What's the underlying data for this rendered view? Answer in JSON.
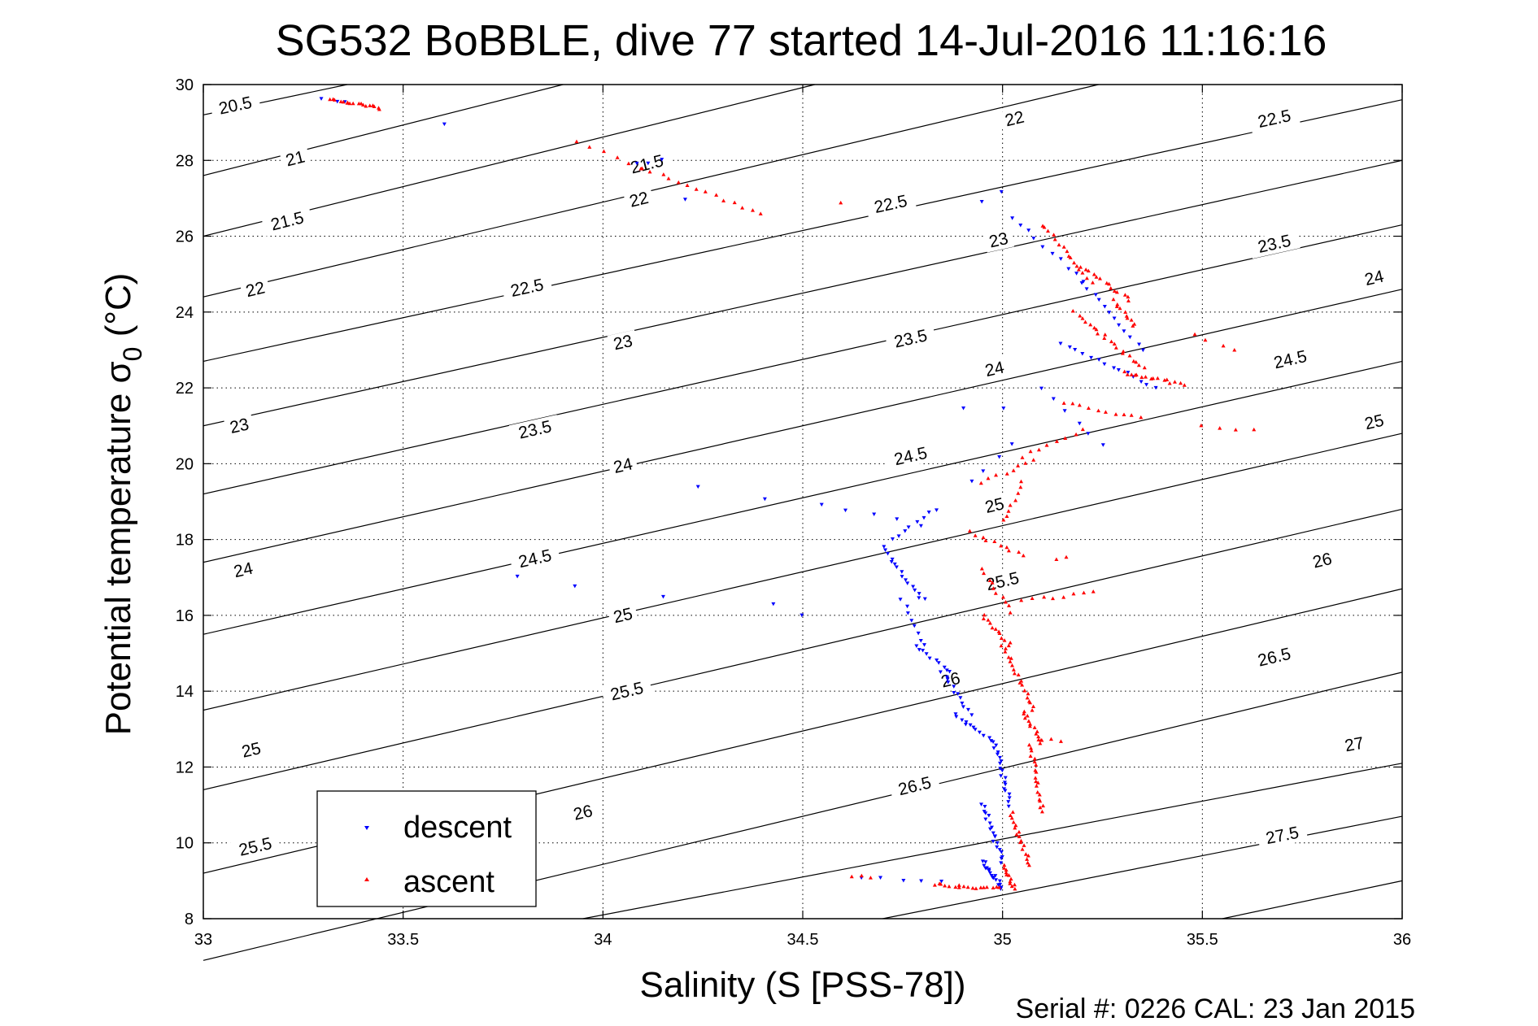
{
  "figure": {
    "title": "SG532 BoBBLE, dive 77 started 14-Jul-2016 11:16:16",
    "footer": "Serial #: 0226  CAL: 23 Jan 2015"
  },
  "chart_data": {
    "type": "scatter",
    "title": "SG532 BoBBLE, dive 77 started 14-Jul-2016 11:16:16",
    "xlabel": "Salinity (S [PSS-78])",
    "ylabel_main": "Potential temperature σ",
    "ylabel_sub": "0",
    "ylabel_unit": " (°C)",
    "xlim": [
      33,
      36
    ],
    "ylim": [
      8,
      30
    ],
    "grid": true,
    "xticks": [
      33,
      33.5,
      34,
      34.5,
      35,
      35.5,
      36
    ],
    "xtick_labels": [
      "33",
      "33.5",
      "34",
      "34.5",
      "35",
      "35.5",
      "36"
    ],
    "yticks": [
      8,
      10,
      12,
      14,
      16,
      18,
      20,
      22,
      24,
      26,
      28,
      30
    ],
    "ytick_labels": [
      "8",
      "10",
      "12",
      "14",
      "16",
      "18",
      "20",
      "22",
      "24",
      "26",
      "28",
      "30"
    ],
    "legend": {
      "position": "bottom-left",
      "entries": [
        "descent",
        "ascent"
      ]
    },
    "colors": {
      "descent": "#0000ff",
      "ascent": "#ff0000",
      "contour": "#000000"
    },
    "contours": [
      {
        "label": "20.5",
        "line": [
          [
            33,
            29.2
          ],
          [
            33.36,
            30
          ]
        ],
        "label_pos": [
          33.08,
          29.45
        ]
      },
      {
        "label": "21",
        "line": [
          [
            33,
            27.6
          ],
          [
            33.9,
            30
          ]
        ],
        "label_pos": [
          33.23,
          28.05
        ]
      },
      {
        "label": "21.5",
        "line": [
          [
            33,
            26.0
          ],
          [
            34.53,
            30
          ]
        ],
        "label_pos": [
          33.21,
          26.4
        ],
        "label2": "21.5",
        "label2_pos": [
          34.11,
          27.9
        ]
      },
      {
        "label": "22",
        "line": [
          [
            33,
            24.4
          ],
          [
            35.24,
            30
          ]
        ],
        "label_pos": [
          33.13,
          24.6
        ],
        "label2": "22",
        "label2_pos": [
          34.09,
          26.97
        ],
        "label3": "22",
        "label3_pos": [
          35.03,
          29.1
        ]
      },
      {
        "label": "22.5",
        "line": [
          [
            33,
            22.7
          ],
          [
            36,
            29.6
          ]
        ],
        "label_pos": [
          33.81,
          24.64
        ],
        "label2": "22.5",
        "label2_pos": [
          34.72,
          26.85
        ],
        "label3": "22.5",
        "label3_pos": [
          35.68,
          29.1
        ]
      },
      {
        "label": "23",
        "line": [
          [
            33,
            21.0
          ],
          [
            36,
            28.0
          ]
        ],
        "label_pos": [
          33.09,
          21.0
        ],
        "label2": "23",
        "label2_pos": [
          34.05,
          23.2
        ],
        "label3": "23",
        "label3_pos": [
          34.99,
          25.9
        ]
      },
      {
        "label": "23.5",
        "line": [
          [
            33,
            19.2
          ],
          [
            36,
            26.3
          ]
        ],
        "label_pos": [
          33.83,
          20.9
        ],
        "label2": "23.5",
        "label2_pos": [
          34.77,
          23.3
        ],
        "label3": "23.5",
        "label3_pos": [
          35.68,
          25.8
        ]
      },
      {
        "label": "24",
        "line": [
          [
            33,
            17.4
          ],
          [
            36,
            24.6
          ]
        ],
        "label_pos": [
          33.1,
          17.2
        ],
        "label2": "24",
        "label2_pos": [
          34.05,
          19.95
        ],
        "label3": "24",
        "label3_pos": [
          34.98,
          22.5
        ],
        "label4": "24",
        "label4_pos": [
          35.93,
          24.9
        ]
      },
      {
        "label": "24.5",
        "line": [
          [
            33,
            15.5
          ],
          [
            36,
            22.7
          ]
        ],
        "label_pos": [
          33.83,
          17.5
        ],
        "label2": "24.5",
        "label2_pos": [
          34.77,
          20.2
        ],
        "label3": "24.5",
        "label3_pos": [
          35.72,
          22.75
        ]
      },
      {
        "label": "25",
        "line": [
          [
            33,
            13.5
          ],
          [
            36,
            20.8
          ]
        ],
        "label_pos": [
          33.12,
          12.45
        ],
        "label2": "25",
        "label2_pos": [
          34.05,
          16.0
        ],
        "label3": "25",
        "label3_pos": [
          34.98,
          18.9
        ],
        "label4": "25",
        "label4_pos": [
          35.93,
          21.1
        ]
      },
      {
        "label": "25.5",
        "line": [
          [
            33,
            11.4
          ],
          [
            36,
            18.8
          ]
        ],
        "label_pos": [
          33.13,
          9.9
        ],
        "label2": "25.5",
        "label2_pos": [
          34.06,
          14.0
        ],
        "label3": "25.5",
        "label3_pos": [
          35.0,
          16.9
        ]
      },
      {
        "label": "26",
        "line": [
          [
            33,
            9.2
          ],
          [
            36,
            16.7
          ]
        ],
        "label_pos": [
          33.95,
          10.8
        ],
        "label2": "26",
        "label2_pos": [
          34.87,
          14.3
        ],
        "label3": "26",
        "label3_pos": [
          35.8,
          17.45
        ]
      },
      {
        "label": "26.5",
        "line": [
          [
            33,
            6.9
          ],
          [
            36,
            14.5
          ]
        ],
        "label_pos": [
          34.78,
          11.5
        ],
        "label2": "26.5",
        "label2_pos": [
          35.68,
          14.9
        ]
      },
      {
        "label": "27",
        "line": [
          [
            33.95,
            8
          ],
          [
            36,
            12.1
          ]
        ],
        "label_pos": [
          35.88,
          12.6
        ]
      },
      {
        "label": "27.5",
        "line": [
          [
            34.7,
            8
          ],
          [
            36,
            10.7
          ]
        ],
        "label_pos": [
          35.7,
          10.2
        ]
      },
      {
        "label": "",
        "line": [
          [
            35.55,
            8
          ],
          [
            36,
            9.0
          ]
        ]
      }
    ],
    "series": [
      {
        "name": "descent",
        "marker": "triangle-down",
        "segments": [
          [
            33.3,
            29.6,
            33.36,
            29.58,
            3
          ],
          [
            33.6,
            28.95,
            33.6,
            28.95,
            1
          ],
          [
            34.08,
            27.9,
            34.15,
            28.0,
            3
          ],
          [
            34.2,
            27.0,
            34.2,
            27.0,
            1
          ],
          [
            34.95,
            26.95,
            35.0,
            27.2,
            2
          ],
          [
            35.02,
            26.5,
            35.2,
            24.8,
            10
          ],
          [
            35.2,
            24.8,
            35.35,
            23.0,
            12
          ],
          [
            35.15,
            23.2,
            35.38,
            22.0,
            14
          ],
          [
            35.1,
            22.0,
            35.25,
            20.5,
            6
          ],
          [
            34.9,
            21.5,
            35.0,
            21.5,
            2
          ],
          [
            35.02,
            20.5,
            34.92,
            19.5,
            4
          ],
          [
            34.24,
            19.4,
            34.41,
            19.1,
            2
          ],
          [
            34.55,
            18.9,
            34.8,
            18.4,
            5
          ],
          [
            34.72,
            18.0,
            34.83,
            18.8,
            8
          ],
          [
            34.7,
            17.8,
            34.8,
            16.4,
            16
          ],
          [
            34.75,
            16.4,
            34.8,
            15.2,
            8
          ],
          [
            34.78,
            15.2,
            34.87,
            14.5,
            10
          ],
          [
            34.85,
            14.5,
            34.92,
            13.4,
            12
          ],
          [
            34.88,
            13.4,
            34.97,
            12.7,
            12
          ],
          [
            34.98,
            12.7,
            35.02,
            11.0,
            20
          ],
          [
            34.95,
            11.0,
            35.0,
            9.5,
            20
          ],
          [
            34.95,
            9.5,
            35.0,
            8.8,
            18
          ],
          [
            33.78,
            17.0,
            33.93,
            16.8,
            2
          ],
          [
            34.15,
            16.5,
            34.43,
            16.3,
            2
          ],
          [
            34.5,
            16.0,
            34.55,
            16.0,
            1
          ],
          [
            34.65,
            9.1,
            34.85,
            8.95,
            5
          ]
        ]
      },
      {
        "name": "ascent",
        "marker": "triangle-up",
        "segments": [
          [
            33.32,
            29.62,
            33.44,
            29.38,
            18
          ],
          [
            33.93,
            28.5,
            34.1,
            27.8,
            6
          ],
          [
            34.1,
            27.8,
            34.4,
            26.6,
            14
          ],
          [
            34.6,
            26.85,
            34.6,
            26.85,
            1
          ],
          [
            35.1,
            26.3,
            35.22,
            24.8,
            16
          ],
          [
            35.2,
            25.2,
            35.32,
            24.3,
            14
          ],
          [
            35.28,
            24.3,
            35.33,
            23.6,
            10
          ],
          [
            35.18,
            24.0,
            35.35,
            22.5,
            20
          ],
          [
            35.3,
            22.4,
            35.45,
            22.1,
            16
          ],
          [
            35.48,
            23.4,
            35.58,
            23.0,
            4
          ],
          [
            35.15,
            21.6,
            35.35,
            21.2,
            10
          ],
          [
            35.5,
            21.0,
            35.63,
            20.9,
            4
          ],
          [
            35.05,
            20.2,
            35.2,
            20.9,
            8
          ],
          [
            34.95,
            19.5,
            35.08,
            20.1,
            8
          ],
          [
            35.0,
            18.5,
            35.05,
            19.5,
            8
          ],
          [
            34.92,
            18.2,
            35.05,
            17.6,
            10
          ],
          [
            34.95,
            17.2,
            35.02,
            16.1,
            10
          ],
          [
            35.05,
            16.4,
            35.23,
            16.6,
            8
          ],
          [
            35.13,
            17.5,
            35.16,
            17.5,
            2
          ],
          [
            34.95,
            16.0,
            35.02,
            15.2,
            12
          ],
          [
            35.0,
            15.2,
            35.08,
            13.5,
            20
          ],
          [
            35.05,
            13.5,
            35.1,
            12.6,
            14
          ],
          [
            35.1,
            12.7,
            35.15,
            12.7,
            3
          ],
          [
            35.07,
            12.6,
            35.1,
            10.8,
            20
          ],
          [
            35.02,
            10.8,
            35.07,
            9.4,
            18
          ],
          [
            35.0,
            9.4,
            35.03,
            8.8,
            12
          ],
          [
            34.83,
            8.9,
            34.99,
            8.8,
            18
          ],
          [
            34.62,
            9.12,
            34.67,
            9.08,
            3
          ]
        ]
      }
    ]
  }
}
